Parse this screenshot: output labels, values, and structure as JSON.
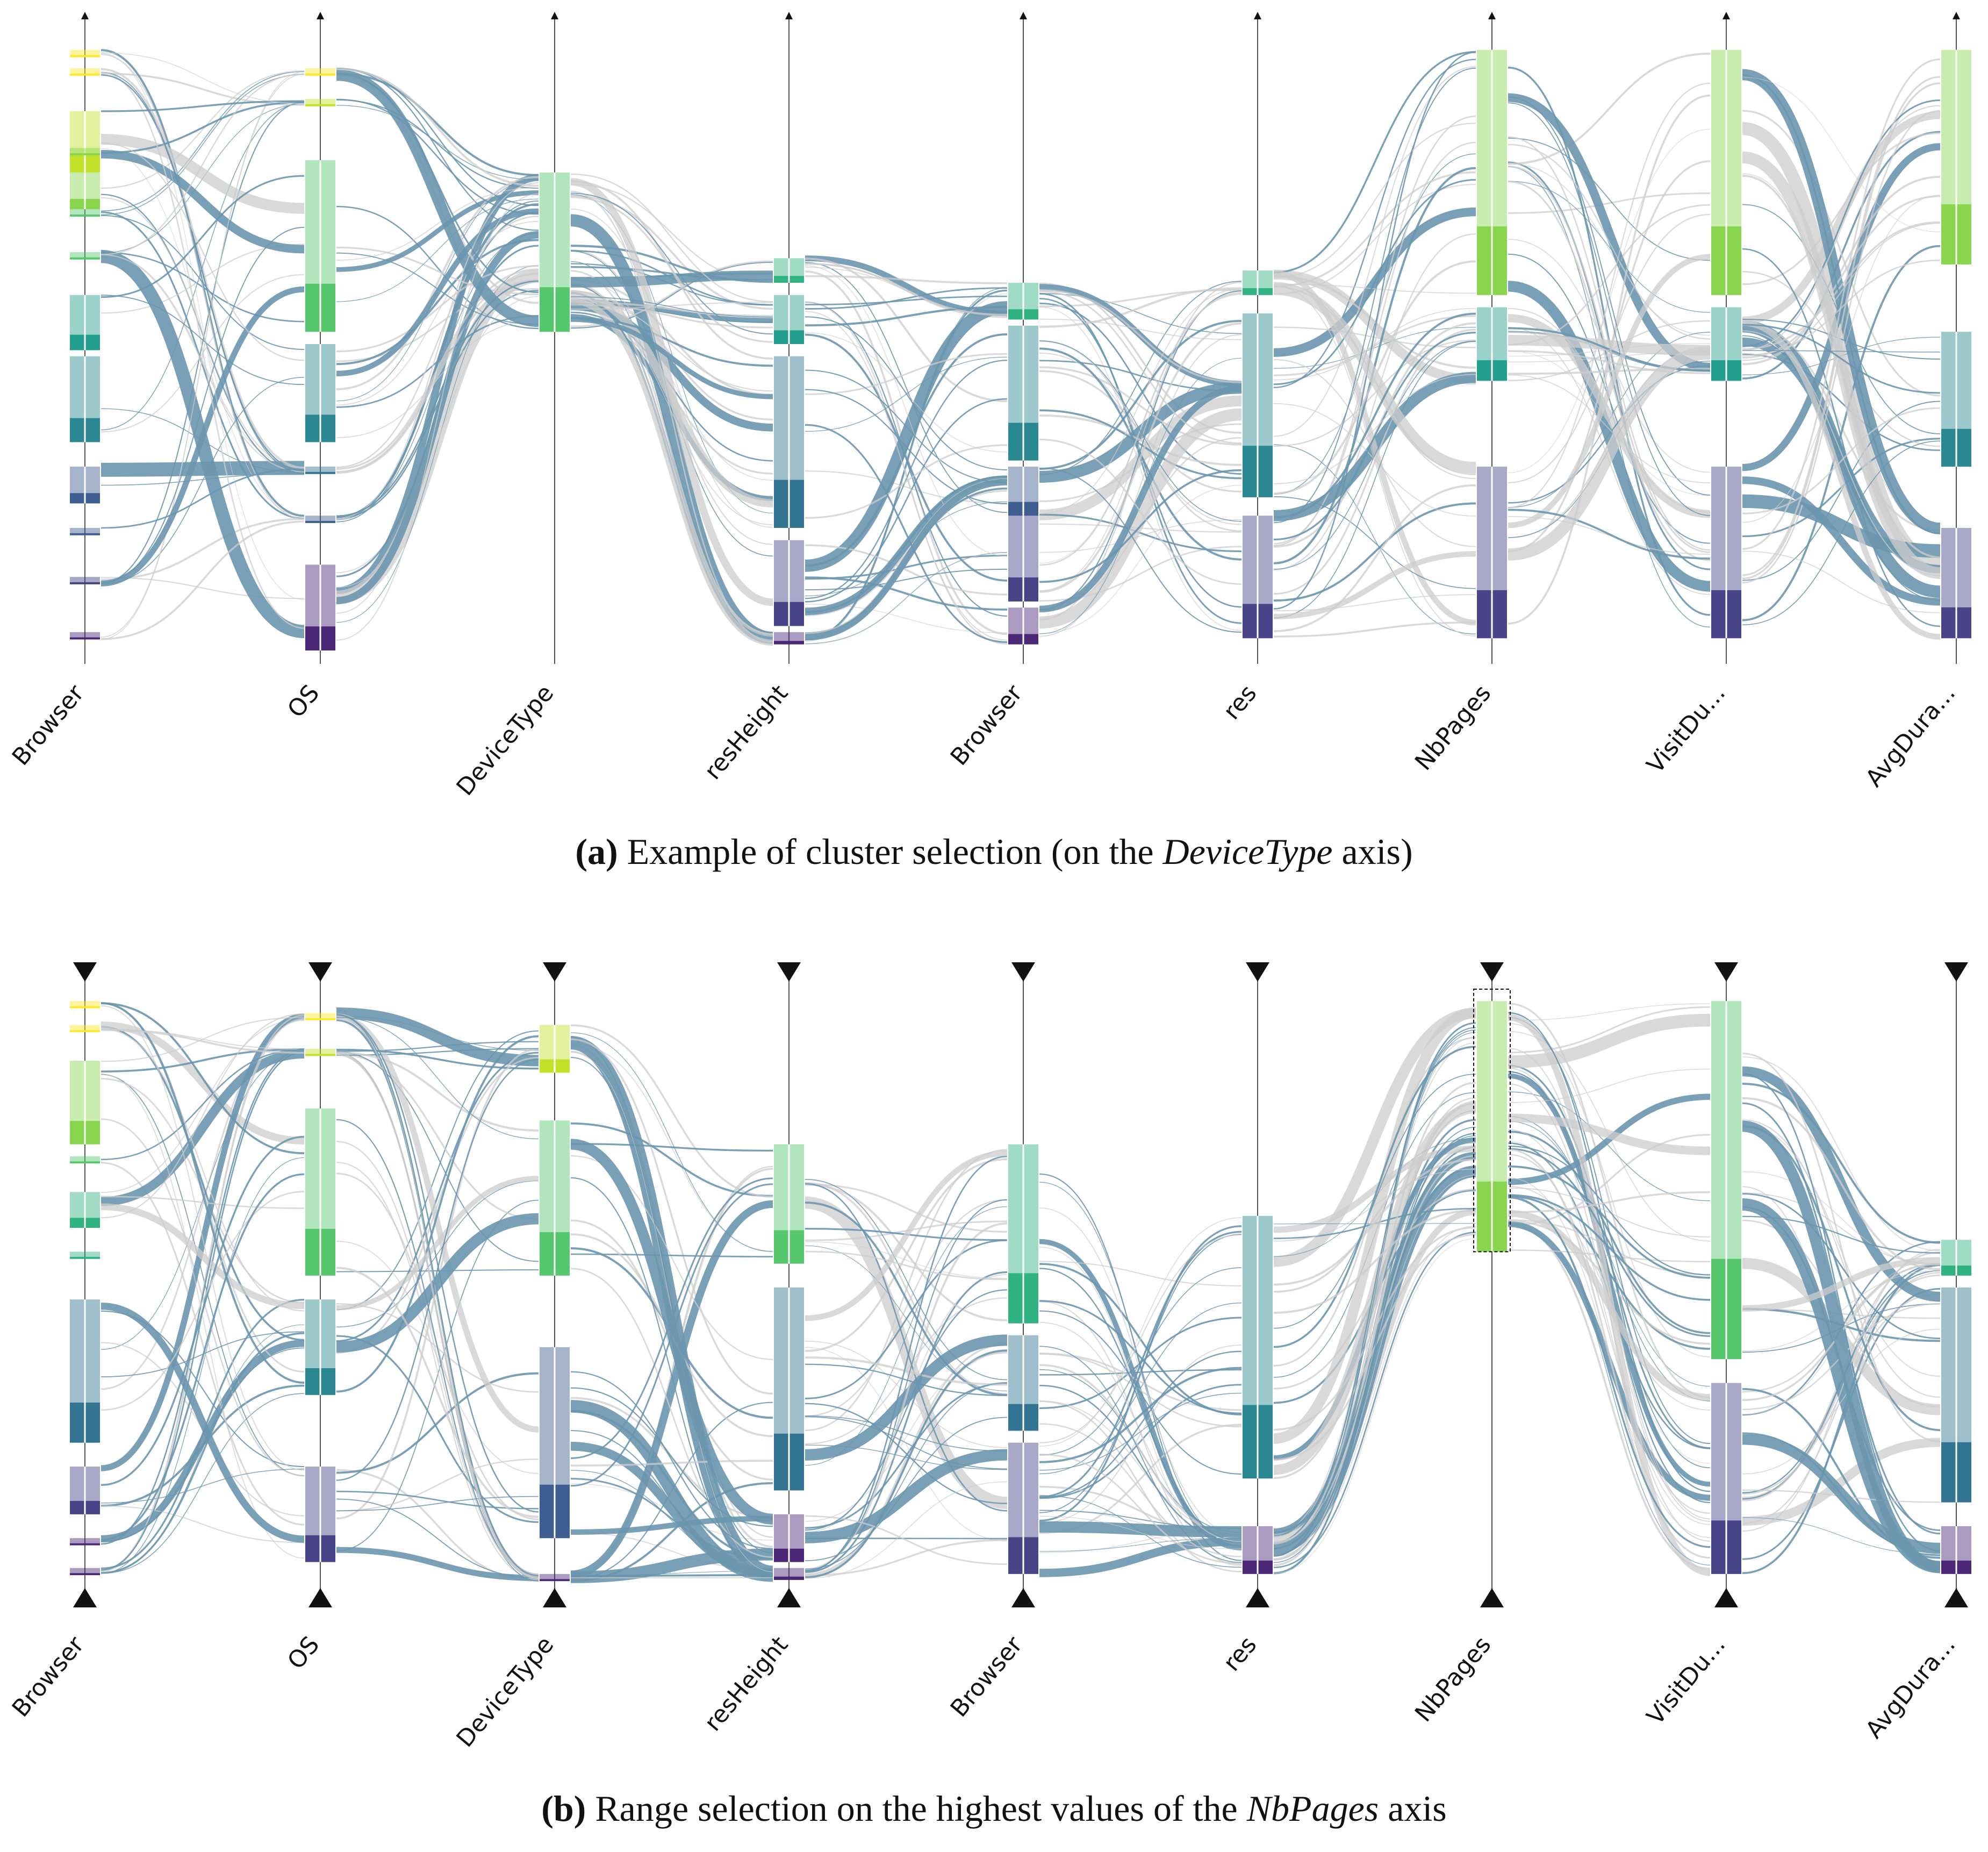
{
  "panels": [
    {
      "id": "a",
      "caption_label": "(a)",
      "caption_pre": "Example of cluster selection (on the ",
      "caption_em": "DeviceType",
      "caption_post": " axis)",
      "axes": [
        "Browser",
        "OS",
        "DeviceType",
        "resHeight",
        "Browser",
        "res",
        "NbPages",
        "VisitDu...",
        "AvgDura..."
      ],
      "selection": {
        "type": "cluster",
        "axis": "DeviceType"
      },
      "range_markers": false
    },
    {
      "id": "b",
      "caption_label": "(b)",
      "caption_pre": "Range selection on the highest values of the ",
      "caption_em": "NbPages",
      "caption_post": " axis",
      "axes": [
        "Browser",
        "OS",
        "DeviceType",
        "resHeight",
        "Browser",
        "res",
        "NbPages",
        "VisitDu...",
        "AvgDura..."
      ],
      "selection": {
        "type": "range",
        "axis": "NbPages",
        "range": "highest values"
      },
      "range_markers": true
    }
  ],
  "chart_data": [
    {
      "type": "parallel-sets",
      "panel": "a",
      "axes": [
        "Browser",
        "OS",
        "DeviceType",
        "resHeight",
        "Browser",
        "res",
        "NbPages",
        "VisitDu...",
        "AvgDura..."
      ],
      "highlight_color": "#6a96ae",
      "context_color": "#cccccc",
      "category_palette": [
        "#fde725",
        "#c2df23",
        "#86d549",
        "#52c569",
        "#2ab07f",
        "#1e9b8a",
        "#25858e",
        "#2d708e",
        "#38588c",
        "#433e85",
        "#482173",
        "#440154"
      ],
      "axis_segments": [
        [
          [
            0.02,
            0.012
          ],
          [
            0.05,
            0.012
          ],
          [
            0.12,
            0.1
          ],
          [
            0.18,
            0.012
          ],
          [
            0.22,
            0.06
          ],
          [
            0.28,
            0.012
          ],
          [
            0.35,
            0.012
          ],
          [
            0.42,
            0.09
          ],
          [
            0.52,
            0.14
          ],
          [
            0.7,
            0.06
          ],
          [
            0.8,
            0.012
          ],
          [
            0.88,
            0.012
          ],
          [
            0.97,
            0.012
          ]
        ],
        [
          [
            0.05,
            0.012
          ],
          [
            0.1,
            0.012
          ],
          [
            0.2,
            0.28
          ],
          [
            0.5,
            0.16
          ],
          [
            0.7,
            0.012
          ],
          [
            0.78,
            0.012
          ],
          [
            0.86,
            0.14
          ]
        ],
        [
          [
            0.22,
            0.26
          ]
        ],
        [
          [
            0.36,
            0.04
          ],
          [
            0.42,
            0.08
          ],
          [
            0.52,
            0.28
          ],
          [
            0.82,
            0.14
          ],
          [
            0.97,
            0.02
          ]
        ],
        [
          [
            0.4,
            0.06
          ],
          [
            0.47,
            0.22
          ],
          [
            0.7,
            0.08
          ],
          [
            0.78,
            0.14
          ],
          [
            0.93,
            0.06
          ]
        ],
        [
          [
            0.38,
            0.04
          ],
          [
            0.45,
            0.3
          ],
          [
            0.78,
            0.2
          ]
        ],
        [
          [
            0.02,
            0.4
          ],
          [
            0.44,
            0.12
          ],
          [
            0.7,
            0.28
          ]
        ],
        [
          [
            0.02,
            0.4
          ],
          [
            0.44,
            0.12
          ],
          [
            0.7,
            0.28
          ]
        ],
        [
          [
            0.02,
            0.35
          ],
          [
            0.48,
            0.22
          ],
          [
            0.8,
            0.18
          ]
        ]
      ]
    },
    {
      "type": "parallel-sets",
      "panel": "b",
      "axes": [
        "Browser",
        "OS",
        "DeviceType",
        "resHeight",
        "Browser",
        "res",
        "NbPages",
        "VisitDu...",
        "AvgDura..."
      ],
      "highlight_color": "#6a96ae",
      "context_color": "#cccccc",
      "category_palette": [
        "#fde725",
        "#c2df23",
        "#86d549",
        "#52c569",
        "#2ab07f",
        "#1e9b8a",
        "#25858e",
        "#2d708e",
        "#38588c",
        "#433e85",
        "#482173",
        "#440154"
      ],
      "axis_segments": [
        [
          [
            0.02,
            0.012
          ],
          [
            0.06,
            0.012
          ],
          [
            0.12,
            0.14
          ],
          [
            0.28,
            0.012
          ],
          [
            0.34,
            0.06
          ],
          [
            0.44,
            0.012
          ],
          [
            0.52,
            0.24
          ],
          [
            0.8,
            0.08
          ],
          [
            0.92,
            0.012
          ],
          [
            0.97,
            0.012
          ]
        ],
        [
          [
            0.04,
            0.012
          ],
          [
            0.1,
            0.012
          ],
          [
            0.2,
            0.28
          ],
          [
            0.52,
            0.16
          ],
          [
            0.8,
            0.16
          ]
        ],
        [
          [
            0.06,
            0.08
          ],
          [
            0.22,
            0.26
          ],
          [
            0.6,
            0.32
          ],
          [
            0.98,
            0.012
          ]
        ],
        [
          [
            0.26,
            0.2
          ],
          [
            0.5,
            0.34
          ],
          [
            0.88,
            0.08
          ],
          [
            0.97,
            0.02
          ]
        ],
        [
          [
            0.26,
            0.3
          ],
          [
            0.58,
            0.16
          ],
          [
            0.76,
            0.22
          ]
        ],
        [
          [
            0.38,
            0.44
          ],
          [
            0.9,
            0.08
          ]
        ],
        [
          [
            0.02,
            0.42
          ]
        ],
        [
          [
            0.02,
            0.6
          ],
          [
            0.66,
            0.32
          ]
        ],
        [
          [
            0.42,
            0.06
          ],
          [
            0.5,
            0.36
          ],
          [
            0.9,
            0.08
          ]
        ]
      ],
      "brush": {
        "axis": "NbPages",
        "from": 0.44,
        "to": 1.0
      }
    }
  ]
}
